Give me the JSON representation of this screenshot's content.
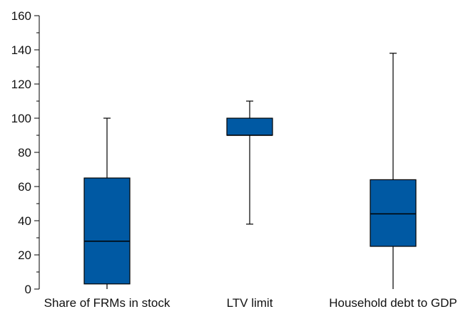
{
  "chart_data": {
    "type": "boxplot",
    "title": "",
    "xlabel": "",
    "ylabel": "",
    "ylim": [
      0,
      160
    ],
    "y_major_ticks": [
      0,
      20,
      40,
      60,
      80,
      100,
      120,
      140,
      160
    ],
    "y_minor_ticks": [
      10,
      30,
      50,
      70,
      90,
      110,
      130,
      150
    ],
    "grid": false,
    "legend": "none",
    "box_color": "#0059a3",
    "line_color": "#000000",
    "categories": [
      "Share of FRMs in stock",
      "LTV limit",
      "Household debt to GDP"
    ],
    "boxes": [
      {
        "label": "Share of FRMs in stock",
        "whisker_low": 0,
        "q1": 3,
        "median": 28,
        "q3": 65,
        "whisker_high": 100
      },
      {
        "label": "LTV limit",
        "whisker_low": 38,
        "q1": 90,
        "median": 90,
        "q3": 100,
        "whisker_high": 110
      },
      {
        "label": "Household debt to GDP",
        "whisker_low": 0,
        "q1": 25,
        "median": 44,
        "q3": 64,
        "whisker_high": 138
      }
    ]
  }
}
